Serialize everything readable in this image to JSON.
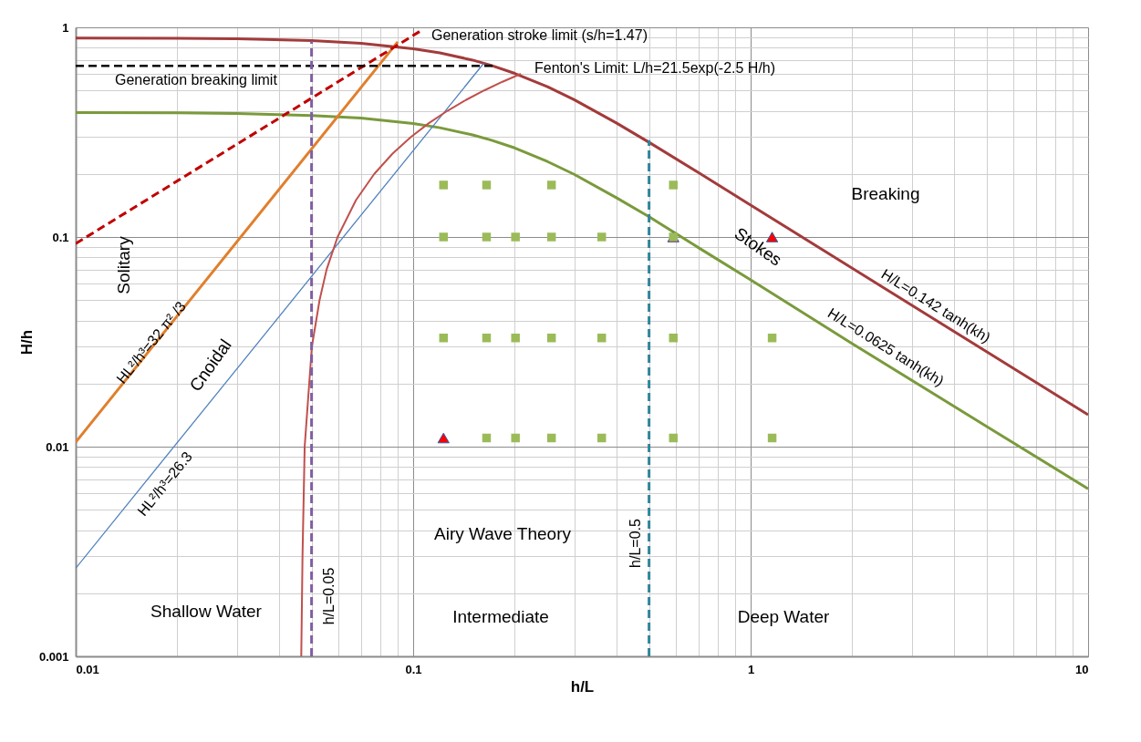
{
  "chart_data": {
    "type": "line",
    "xlabel": "h/L",
    "ylabel": "H/h",
    "log": "xy",
    "grid": true,
    "marker": "none",
    "xlim": [
      0.01,
      10
    ],
    "ylim": [
      0.001,
      1
    ],
    "xticks": [
      0.01,
      {
        "value": 0.02,
        "label": null
      },
      {
        "value": 0.03,
        "label": null
      },
      {
        "value": 0.04,
        "label": null
      },
      {
        "value": 0.05,
        "label": null
      },
      {
        "value": 0.06,
        "label": null
      },
      {
        "value": 0.07,
        "label": null
      },
      {
        "value": 0.08,
        "label": null
      },
      {
        "value": 0.09,
        "label": null
      },
      0.1,
      {
        "value": 0.2,
        "label": null
      },
      {
        "value": 0.3,
        "label": null
      },
      {
        "value": 0.4,
        "label": null
      },
      {
        "value": 0.5,
        "label": null
      },
      {
        "value": 0.6,
        "label": null
      },
      {
        "value": 0.7,
        "label": null
      },
      {
        "value": 0.8,
        "label": null
      },
      {
        "value": 0.9,
        "label": null
      },
      1,
      {
        "value": 2,
        "label": null
      },
      {
        "value": 3,
        "label": null
      },
      {
        "value": 4,
        "label": null
      },
      {
        "value": 5,
        "label": null
      },
      {
        "value": 6,
        "label": null
      },
      {
        "value": 7,
        "label": null
      },
      {
        "value": 8,
        "label": null
      },
      {
        "value": 9,
        "label": null
      },
      10
    ],
    "yticks": [
      0.001,
      {
        "value": 0.002,
        "label": null
      },
      {
        "value": 0.003,
        "label": null
      },
      {
        "value": 0.004,
        "label": null
      },
      {
        "value": 0.005,
        "label": null
      },
      {
        "value": 0.006,
        "label": null
      },
      {
        "value": 0.007,
        "label": null
      },
      {
        "value": 0.008,
        "label": null
      },
      {
        "value": 0.009,
        "label": null
      },
      0.01,
      {
        "value": 0.02,
        "label": null
      },
      {
        "value": 0.03,
        "label": null
      },
      {
        "value": 0.04,
        "label": null
      },
      {
        "value": 0.05,
        "label": null
      },
      {
        "value": 0.06,
        "label": null
      },
      {
        "value": 0.07,
        "label": null
      },
      {
        "value": 0.08,
        "label": null
      },
      {
        "value": 0.09,
        "label": null
      },
      0.1,
      {
        "value": 0.2,
        "label": null
      },
      {
        "value": 0.3,
        "label": null
      },
      {
        "value": 0.4,
        "label": null
      },
      {
        "value": 0.5,
        "label": null
      },
      {
        "value": 0.6,
        "label": null
      },
      {
        "value": 0.7,
        "label": null
      },
      {
        "value": 0.8,
        "label": null
      },
      {
        "value": 0.9,
        "label": null
      },
      1
    ],
    "series": [
      {
        "name": "H/L=0.142 tanh(kh)",
        "color": "#a33b3b",
        "line_style": "solid",
        "x": [
          0.01,
          0.02,
          0.03,
          0.05,
          0.07,
          0.1,
          0.12,
          0.15,
          0.17,
          0.2,
          0.25,
          0.3,
          0.4,
          0.5,
          0.7,
          1,
          2,
          5,
          10
        ],
        "values": [
          0.89,
          0.887,
          0.882,
          0.864,
          0.839,
          0.791,
          0.755,
          0.698,
          0.659,
          0.603,
          0.521,
          0.452,
          0.35,
          0.283,
          0.203,
          0.142,
          0.071,
          0.0284,
          0.0142
        ]
      },
      {
        "name": "H/L=0.0625 tanh(kh)",
        "color": "#7a9a3c",
        "line_style": "solid",
        "x": [
          0.01,
          0.02,
          0.03,
          0.05,
          0.07,
          0.1,
          0.12,
          0.15,
          0.17,
          0.2,
          0.25,
          0.3,
          0.4,
          0.5,
          0.7,
          1,
          2,
          5,
          10
        ],
        "values": [
          0.392,
          0.391,
          0.388,
          0.38,
          0.369,
          0.348,
          0.332,
          0.307,
          0.29,
          0.266,
          0.229,
          0.199,
          0.154,
          0.125,
          0.089,
          0.0625,
          0.031,
          0.0125,
          0.0063
        ]
      },
      {
        "name": "HL²/h³=32 π² /3",
        "color": "#e07f2c",
        "line_style": "solid",
        "x": [
          0.01,
          0.09
        ],
        "values": [
          0.0105,
          0.853
        ]
      },
      {
        "name": "HL²/h³=26.3",
        "color": "#4f81bd",
        "line_style": "solid",
        "x": [
          0.01,
          0.162
        ],
        "values": [
          0.00263,
          0.675
        ]
      },
      {
        "name": "Generation stroke limit (s/h=1.47)",
        "color": "#c00000",
        "line_style": "dashed",
        "x": [
          0.01,
          0.105
        ],
        "values": [
          0.093,
          0.96
        ]
      },
      {
        "name": "Generation breaking limit",
        "color": "#000000",
        "line_style": "dashed",
        "x": [
          0.01,
          0.173
        ],
        "values": [
          0.655,
          0.655
        ]
      },
      {
        "name": "Fenton's Limit: L/h=21.5exp(-2.5 H/h)",
        "color": "#c0504d",
        "line_style": "solid",
        "x": [
          0.0466,
          0.047,
          0.0477,
          0.0501,
          0.0528,
          0.0554,
          0.0597,
          0.0677,
          0.0767,
          0.0869,
          0.0985,
          0.1115,
          0.1264,
          0.1432,
          0.1623,
          0.1839,
          0.2084
        ],
        "values": [
          0.001,
          0.003,
          0.01,
          0.03,
          0.05,
          0.07,
          0.1,
          0.15,
          0.2,
          0.25,
          0.3,
          0.35,
          0.4,
          0.45,
          0.5,
          0.55,
          0.6
        ]
      },
      {
        "name": "h/L=0.05",
        "color": "#7f5fa0",
        "line_style": "dashed",
        "x": [
          0.05,
          0.05
        ],
        "values": [
          0.001,
          0.86
        ]
      },
      {
        "name": "h/L=0.5",
        "color": "#31849b",
        "line_style": "dashed",
        "x": [
          0.5,
          0.5
        ],
        "values": [
          0.001,
          0.29
        ]
      },
      {
        "type": "scatter",
        "marker": "triangle",
        "color": "#ff0000",
        "x": [
          0.123,
          0.59,
          1.158
        ],
        "values": [
          0.011,
          0.1,
          0.1
        ]
      },
      {
        "type": "scatter",
        "marker": "square",
        "color": "#9bbb59",
        "x": [
          0.123,
          0.165,
          0.257,
          0.59,
          0.123,
          0.165,
          0.201,
          0.257,
          0.362,
          0.59,
          0.123,
          0.165,
          0.201,
          0.257,
          0.362,
          0.59,
          1.158,
          0.165,
          0.201,
          0.257,
          0.362,
          0.59,
          1.158
        ],
        "values": [
          0.177,
          0.177,
          0.177,
          0.177,
          0.1,
          0.1,
          0.1,
          0.1,
          0.1,
          0.1,
          0.033,
          0.033,
          0.033,
          0.033,
          0.033,
          0.033,
          0.033,
          0.011,
          0.011,
          0.011,
          0.011,
          0.011,
          0.011
        ]
      }
    ],
    "annotations": [
      "Solitary",
      "Cnoidal",
      "Stokes",
      "Breaking",
      "Airy Wave Theory",
      "Shallow Water",
      "Intermediate",
      "Deep Water"
    ]
  }
}
